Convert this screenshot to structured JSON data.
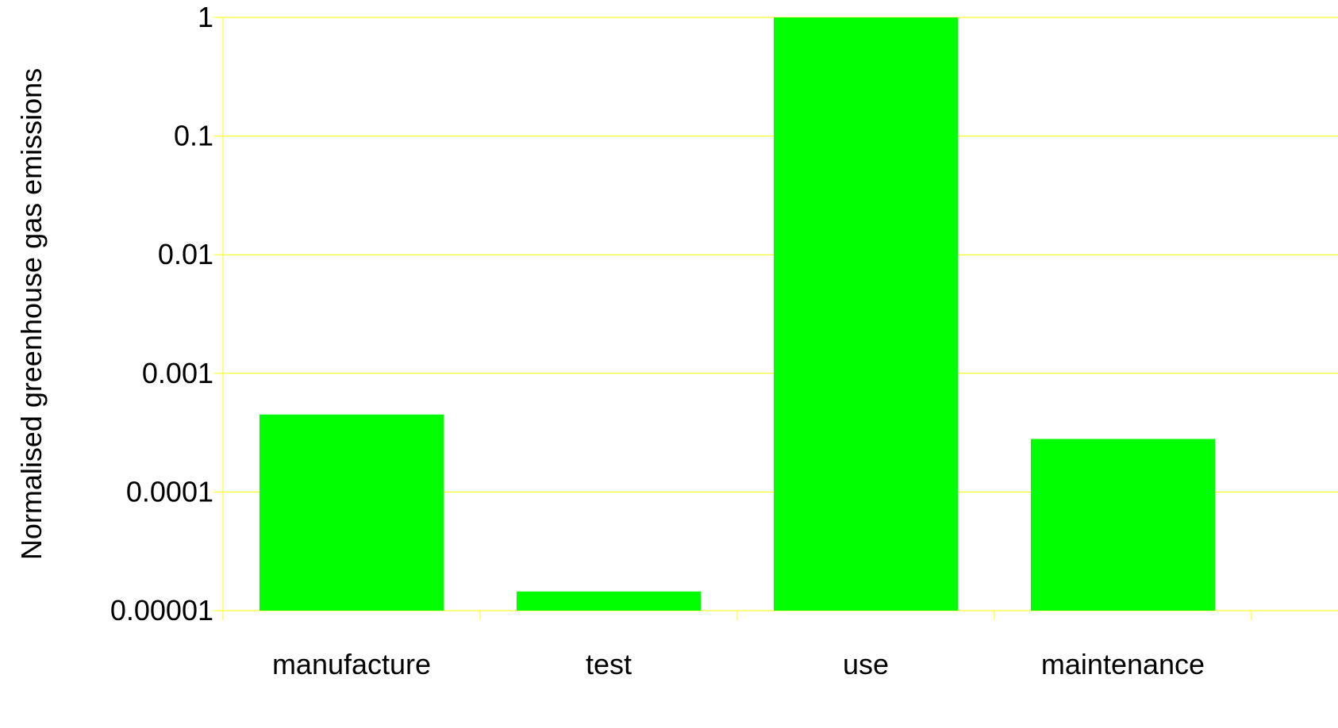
{
  "chart_data": {
    "type": "bar",
    "title": "",
    "xlabel": "",
    "ylabel": "Normalised greenhouse gas emissions",
    "yscale": "log",
    "ylim": [
      1e-05,
      1
    ],
    "yticks": [
      1e-05,
      0.0001,
      0.001,
      0.01,
      0.1,
      1
    ],
    "ytick_labels": [
      "0.00001",
      "0.0001",
      "0.001",
      "0.01",
      "0.1",
      "1"
    ],
    "categories": [
      "manufacture",
      "test",
      "use",
      "maintenance"
    ],
    "values": [
      0.00045,
      1.45e-05,
      1,
      0.00028
    ],
    "grid": "horizontal",
    "legend": "none"
  },
  "colors": {
    "bar": "#00ff00",
    "grid": "#ffff00",
    "axis": "#ffff00",
    "text": "#000000",
    "background": "#ffffff"
  }
}
